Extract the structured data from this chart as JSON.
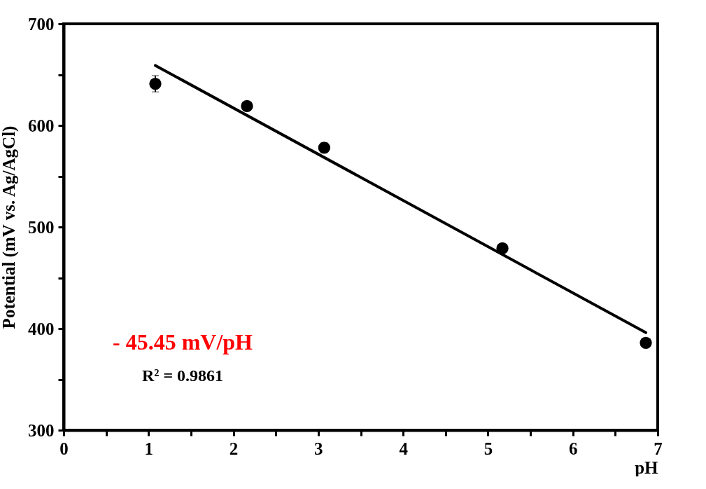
{
  "chart_data": {
    "type": "scatter",
    "xlabel": "pH",
    "ylabel": "Potential (mV vs. Ag/AgCl)",
    "xlim": [
      0,
      7
    ],
    "ylim": [
      300,
      700
    ],
    "xticks": [
      0,
      {
        "value": 0.5,
        "label": null
      },
      1,
      {
        "value": 1.5,
        "label": null
      },
      2,
      {
        "value": 2.5,
        "label": null
      },
      3,
      {
        "value": 3.5,
        "label": null
      },
      4,
      {
        "value": 4.5,
        "label": null
      },
      5,
      {
        "value": 5.5,
        "label": null
      },
      6,
      {
        "value": 6.5,
        "label": null
      },
      7
    ],
    "yticks": [
      300,
      {
        "value": 350,
        "label": null
      },
      400,
      {
        "value": 450,
        "label": null
      },
      500,
      {
        "value": 550,
        "label": null
      },
      600,
      {
        "value": 650,
        "label": null
      },
      700
    ],
    "grid": false,
    "annotations": [
      "- 45.45 mV/pH",
      "R² = 0.9861"
    ],
    "series": [
      {
        "marker": "circle",
        "color": "#000000",
        "x": [
          1.08,
          2.16,
          3.07,
          5.17,
          6.86
        ],
        "values": [
          641,
          619,
          578,
          479,
          386
        ],
        "errors": [
          8,
          null,
          5,
          null,
          null
        ]
      },
      {
        "type": "line",
        "color": "#000000",
        "line_style": "solid",
        "x": [
          1.08,
          6.86
        ],
        "values": [
          659,
          396
        ]
      }
    ]
  }
}
